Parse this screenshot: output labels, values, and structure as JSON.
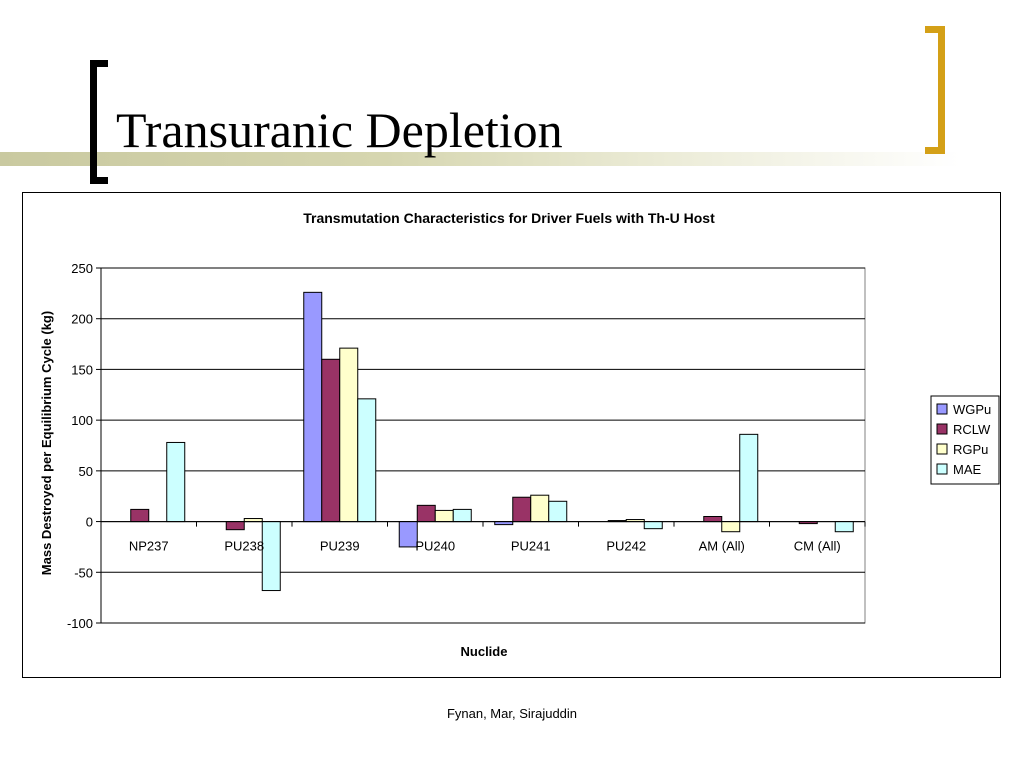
{
  "slide": {
    "title": "Transuranic Depletion",
    "footer": "Fynan, Mar, Sirajuddin"
  },
  "chart_data": {
    "type": "bar",
    "title": "Transmutation Characteristics for Driver Fuels with Th-U Host",
    "xlabel": "Nuclide",
    "ylabel": "Mass Destroyed per Equilibrium Cycle (kg)",
    "ylim": [
      -100,
      250
    ],
    "yticks": [
      250,
      200,
      150,
      100,
      50,
      0,
      -50,
      -100
    ],
    "grid": true,
    "legend_position": "right",
    "categories": [
      "NP237",
      "PU238",
      "PU239",
      "PU240",
      "PU241",
      "PU242",
      "AM (All)",
      "CM (All)"
    ],
    "series": [
      {
        "name": "WGPu",
        "color": "#9999ff",
        "values": [
          0,
          0,
          226,
          -25,
          -3,
          0,
          0,
          0
        ]
      },
      {
        "name": "RCLW",
        "color": "#993366",
        "values": [
          12,
          -8,
          160,
          16,
          24,
          1,
          5,
          -2
        ]
      },
      {
        "name": "RGPu",
        "color": "#ffffcc",
        "values": [
          0,
          3,
          171,
          11,
          26,
          2,
          -10,
          0
        ]
      },
      {
        "name": "MAE",
        "color": "#ccffff",
        "values": [
          78,
          -68,
          121,
          12,
          20,
          -7,
          86,
          -10
        ]
      }
    ]
  }
}
